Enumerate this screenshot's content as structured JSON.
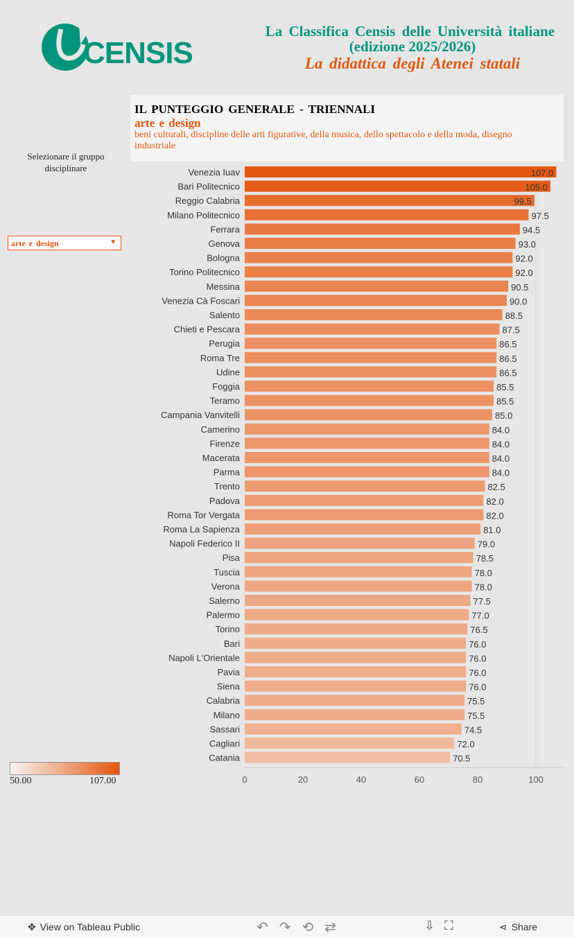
{
  "header": {
    "logo_text": "CENSIS",
    "title_line1": "La Classifica Censis delle Università italiane",
    "title_line2": "(edizione 2025/2026)",
    "subtitle": "La didattica degli Atenei statali"
  },
  "panel": {
    "heading": "IL PUNTEGGIO GENERALE - TRIENNALI",
    "group": "arte e design",
    "description": "beni culturali, discipline delle arti figurative, della musica, dello spettacolo e della moda, disegno industriale"
  },
  "filter": {
    "label": "Selezionare il gruppo disciplinare",
    "selected": "arte e design"
  },
  "legend": {
    "min": "50.00",
    "max": "107.00"
  },
  "colors": {
    "brand_green": "#00957c",
    "accent_orange": "#e4570e",
    "color_min": "#f7f3f1",
    "color_max": "#e4570e"
  },
  "chart_data": {
    "type": "bar",
    "orientation": "horizontal",
    "categories": [
      "Venezia Iuav",
      "Bari Politecnico",
      "Reggio Calabria",
      "Milano Politecnico",
      "Ferrara",
      "Genova",
      "Bologna",
      "Torino Politecnico",
      "Messina",
      "Venezia Cà Foscari",
      "Salento",
      "Chieti e Pescara",
      "Perugia",
      "Roma Tre",
      "Udine",
      "Foggia",
      "Teramo",
      "Campania Vanvitelli",
      "Camerino",
      "Firenze",
      "Macerata",
      "Parma",
      "Trento",
      "Padova",
      "Roma Tor Vergata",
      "Roma La Sapienza",
      "Napoli Federico II",
      "Pisa",
      "Tuscia",
      "Verona",
      "Salerno",
      "Palermo",
      "Torino",
      "Bari",
      "Napoli L'Orientale",
      "Pavia",
      "Siena",
      "Calabria",
      "Milano",
      "Sassari",
      "Cagliari",
      "Catania"
    ],
    "values": [
      107.0,
      105.0,
      99.5,
      97.5,
      94.5,
      93.0,
      92.0,
      92.0,
      90.5,
      90.0,
      88.5,
      87.5,
      86.5,
      86.5,
      86.5,
      85.5,
      85.5,
      85.0,
      84.0,
      84.0,
      84.0,
      84.0,
      82.5,
      82.0,
      82.0,
      81.0,
      79.0,
      78.5,
      78.0,
      78.0,
      77.5,
      77.0,
      76.5,
      76.0,
      76.0,
      76.0,
      76.0,
      75.5,
      75.5,
      74.5,
      72.0,
      70.5
    ],
    "labels": [
      "107.0",
      "105.0",
      "99.5",
      "97.5",
      "94.5",
      "93.0",
      "92.0",
      "92.0",
      "90.5",
      "90.0",
      "88.5",
      "87.5",
      "86.5",
      "86.5",
      "86.5",
      "85.5",
      "85.5",
      "85.0",
      "84.0",
      "84.0",
      "84.0",
      "84.0",
      "82.5",
      "82.0",
      "82.0",
      "81.0",
      "79.0",
      "78.5",
      "78.0",
      "78.0",
      "77.5",
      "77.0",
      "76.5",
      "76.0",
      "76.0",
      "76.0",
      "76.0",
      "75.5",
      "75.5",
      "74.5",
      "72.0",
      "70.5"
    ],
    "xticks": [
      "0",
      "20",
      "40",
      "60",
      "80",
      "100"
    ],
    "xlim": [
      0,
      110
    ],
    "color_range": [
      50,
      107
    ]
  },
  "footer": {
    "view_label": "View on Tableau Public",
    "share_label": "Share"
  }
}
